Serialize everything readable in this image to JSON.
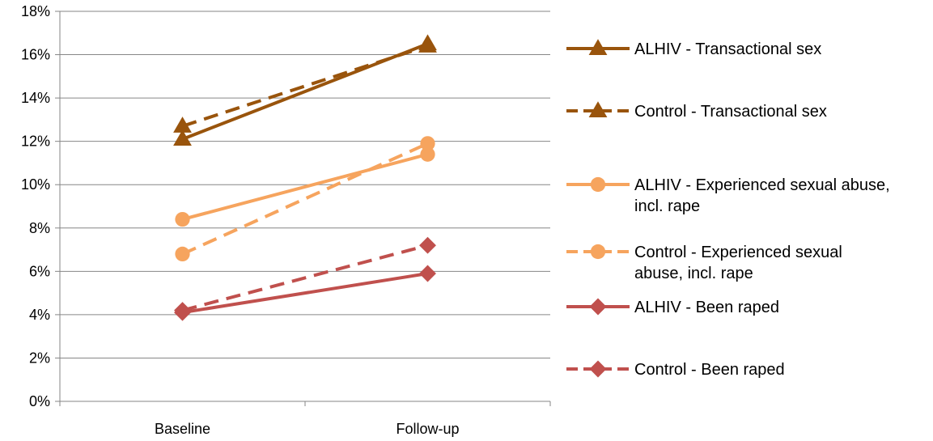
{
  "chart_data": {
    "type": "line",
    "categories": [
      "Baseline",
      "Follow-up"
    ],
    "ylim": [
      0,
      18
    ],
    "y_ticks": [
      "0%",
      "2%",
      "4%",
      "6%",
      "8%",
      "10%",
      "12%",
      "14%",
      "16%",
      "18%"
    ],
    "y_unit": "%",
    "grid": true,
    "legend_position": "right",
    "series": [
      {
        "name": "ALHIV - Transactional sex",
        "name_lines": [
          "ALHIV - Transactional sex"
        ],
        "values": [
          12.1,
          16.5
        ],
        "color": "#99540c",
        "dashed": false,
        "marker": "triangle"
      },
      {
        "name": "Control - Transactional sex",
        "name_lines": [
          "Control - Transactional sex"
        ],
        "values": [
          12.7,
          16.4
        ],
        "color": "#99540c",
        "dashed": true,
        "marker": "triangle"
      },
      {
        "name": "ALHIV - Experienced sexual abuse, incl. rape",
        "name_lines": [
          "ALHIV - Experienced sexual abuse,",
          "incl. rape"
        ],
        "values": [
          8.4,
          11.4
        ],
        "color": "#f6a45e",
        "dashed": false,
        "marker": "circle"
      },
      {
        "name": "Control - Experienced sexual abuse, incl. rape",
        "name_lines": [
          "Control - Experienced sexual",
          "abuse, incl. rape"
        ],
        "values": [
          6.8,
          11.9
        ],
        "color": "#f6a45e",
        "dashed": true,
        "marker": "circle"
      },
      {
        "name": "ALHIV - Been raped",
        "name_lines": [
          "ALHIV - Been raped"
        ],
        "values": [
          4.1,
          5.9
        ],
        "color": "#c0504d",
        "dashed": false,
        "marker": "diamond"
      },
      {
        "name": "Control - Been raped",
        "name_lines": [
          "Control - Been raped"
        ],
        "values": [
          4.2,
          7.2
        ],
        "color": "#c0504d",
        "dashed": true,
        "marker": "diamond"
      }
    ]
  }
}
